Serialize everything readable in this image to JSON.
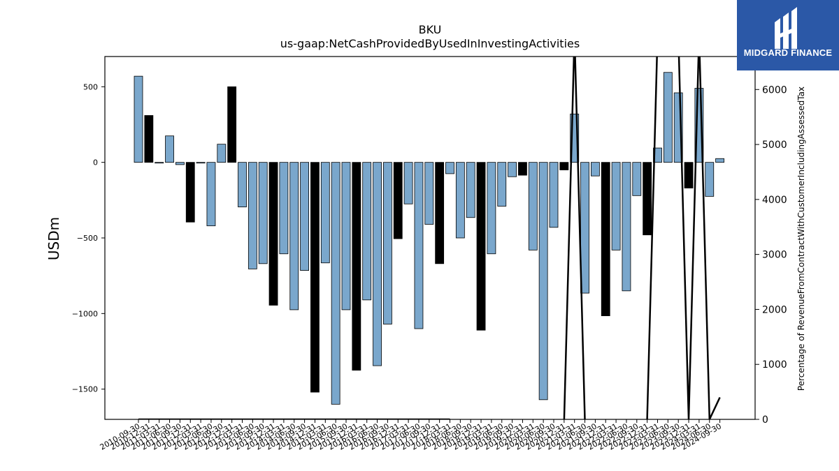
{
  "logo": {
    "text": "MIDGARD FINANCE"
  },
  "chart_data": {
    "type": "bar",
    "title": "BKU",
    "subtitle": "us-gaap:NetCashProvidedByUsedInInvestingActivities",
    "ylabel": "USDm",
    "y2label": "Percentage of RevenueFromContractWithCustomerIncludingAssessedTax",
    "ylim": [
      -1700,
      700
    ],
    "y2lim": [
      0,
      6600
    ],
    "yticks": [
      500,
      0,
      -500,
      -1000,
      -1500
    ],
    "y2ticks": [
      0,
      1000,
      2000,
      3000,
      4000,
      5000,
      6000
    ],
    "categories": [
      "2010-09-30",
      "2010-12-31",
      "2011-03-31",
      "2011-06-30",
      "2011-09-30",
      "2011-12-31",
      "2012-03-31",
      "2012-06-30",
      "2012-09-30",
      "2012-12-31",
      "2013-03-31",
      "2013-06-30",
      "2013-09-30",
      "2013-12-31",
      "2014-03-31",
      "2014-06-30",
      "2014-09-30",
      "2014-12-31",
      "2015-03-31",
      "2015-06-30",
      "2015-09-30",
      "2015-12-31",
      "2016-03-31",
      "2016-06-30",
      "2016-09-30",
      "2016-12-31",
      "2017-03-31",
      "2017-06-30",
      "2017-09-30",
      "2017-12-31",
      "2018-03-31",
      "2018-06-30",
      "2018-09-30",
      "2018-12-31",
      "2019-03-31",
      "2019-06-30",
      "2019-09-30",
      "2019-12-31",
      "2020-03-31",
      "2020-06-30",
      "2020-09-30",
      "2020-12-31",
      "2021-03-31",
      "2021-06-30",
      "2021-09-30",
      "2021-12-31",
      "2022-03-31",
      "2022-06-30",
      "2022-09-30",
      "2022-12-31",
      "2023-03-31",
      "2023-06-30",
      "2023-09-30",
      "2023-12-31",
      "2024-03-31",
      "2024-06-30",
      "2024-09-30"
    ],
    "values": [
      570,
      310,
      -5,
      175,
      -15,
      -395,
      -5,
      -420,
      120,
      500,
      -295,
      -705,
      -670,
      -945,
      -605,
      -975,
      -715,
      -1520,
      -665,
      -1600,
      -975,
      -1375,
      -910,
      -1345,
      -1070,
      -505,
      -275,
      -1100,
      -410,
      -670,
      -75,
      -500,
      -365,
      -1110,
      -605,
      -290,
      -95,
      -85,
      -580,
      -1570,
      -430,
      -50,
      320,
      -865,
      -90,
      -1015,
      -580,
      -850,
      -220,
      -480,
      95,
      595,
      460,
      -170,
      490,
      -225,
      25
    ],
    "highlight": [
      false,
      true,
      false,
      false,
      false,
      true,
      false,
      false,
      false,
      true,
      false,
      false,
      false,
      true,
      false,
      false,
      false,
      true,
      false,
      false,
      false,
      true,
      false,
      false,
      false,
      true,
      false,
      false,
      false,
      true,
      false,
      false,
      false,
      true,
      false,
      false,
      false,
      true,
      false,
      false,
      false,
      true,
      false,
      false,
      false,
      true,
      false,
      false,
      false,
      true,
      false,
      false,
      false,
      true,
      false,
      false,
      false
    ],
    "line_y2": [
      0,
      0,
      0,
      0,
      0,
      0,
      0,
      0,
      0,
      0,
      0,
      0,
      0,
      0,
      0,
      0,
      0,
      0,
      0,
      0,
      0,
      0,
      0,
      0,
      0,
      0,
      0,
      0,
      0,
      0,
      0,
      null,
      null,
      null,
      null,
      null,
      null,
      null,
      null,
      null,
      null,
      0,
      7000,
      0,
      null,
      null,
      null,
      null,
      null,
      0,
      7000,
      null,
      7000,
      0,
      7000,
      0,
      400
    ],
    "colors": {
      "bar": "#7aa7cc",
      "highlight": "#000000",
      "line": "#000000"
    }
  }
}
